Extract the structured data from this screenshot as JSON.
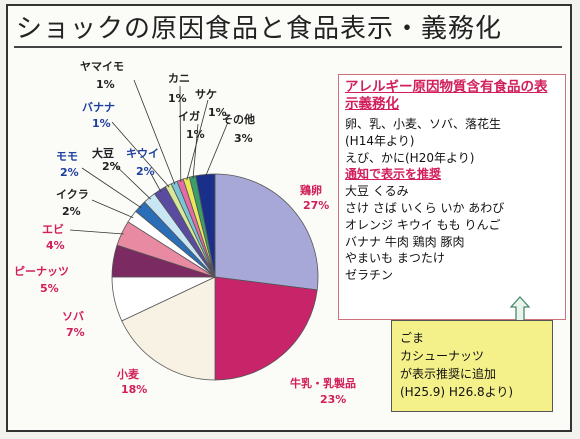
{
  "title": "ショックの原因食品と食品表示・義務化",
  "chart_data": {
    "type": "pie",
    "title": "",
    "slices": [
      {
        "label": "鶏卵",
        "value": 27,
        "value_label": "27%",
        "color": "#a8a8d8"
      },
      {
        "label": "牛乳・乳製品",
        "value": 23,
        "value_label": "23%",
        "color": "#c8246a"
      },
      {
        "label": "小麦",
        "value": 18,
        "value_label": "18%",
        "color": "#f7f2e4"
      },
      {
        "label": "ソバ",
        "value": 7,
        "value_label": "7%",
        "color": "#ffffff"
      },
      {
        "label": "ピーナッツ",
        "value": 5,
        "value_label": "5%",
        "color": "#7c2a62"
      },
      {
        "label": "エビ",
        "value": 4,
        "value_label": "4%",
        "color": "#e88aa2"
      },
      {
        "label": "イクラ",
        "value": 2,
        "value_label": "2%",
        "color": "#ffffff"
      },
      {
        "label": "モモ",
        "value": 2,
        "value_label": "2%",
        "color": "#2a6eb8"
      },
      {
        "label": "大豆",
        "value": 2,
        "value_label": "2%",
        "color": "#c8e6f4"
      },
      {
        "label": "キウイ",
        "value": 2,
        "value_label": "2%",
        "color": "#5a4aa0"
      },
      {
        "label": "バナナ",
        "value": 1,
        "value_label": "1%",
        "color": "#d6e89a"
      },
      {
        "label": "ヤマイモ",
        "value": 1,
        "value_label": "1%",
        "color": "#7ac4d4"
      },
      {
        "label": "カニ",
        "value": 1,
        "value_label": "1%",
        "color": "#e66aa6"
      },
      {
        "label": "サケ",
        "value": 1,
        "value_label": "1%",
        "color": "#e8e85a"
      },
      {
        "label": "イガ",
        "value": 1,
        "value_label": "1%",
        "color": "#3aa06a"
      },
      {
        "label": "その他",
        "value": 3,
        "value_label": "3%",
        "color": "#1a2f8a"
      }
    ],
    "label_colors": {
      "pink": "#d21e5a",
      "blue": "#1f3f9e",
      "black": "#222222"
    }
  },
  "info_box": {
    "heading": "アレルギー原因物質含有食品の表示義務化",
    "mandatory_lines": [
      "卵、乳、小麦、ソバ、落花生",
      "(H14年より)",
      "えび、かに(H20年より)"
    ],
    "recommended_heading": "通知で表示を推奨",
    "recommended_lines": [
      "大豆 くるみ",
      "さけ さば いくら いか あわび",
      "オレンジ キウイ もも りんご",
      "バナナ 牛肉 鶏肉 豚肉",
      "やまいも まつたけ",
      "ゼラチン"
    ]
  },
  "note_box": {
    "lines": [
      "ごま",
      "カシューナッツ",
      "が表示推奨に追加",
      "(H25.9) H26.8より)"
    ]
  }
}
